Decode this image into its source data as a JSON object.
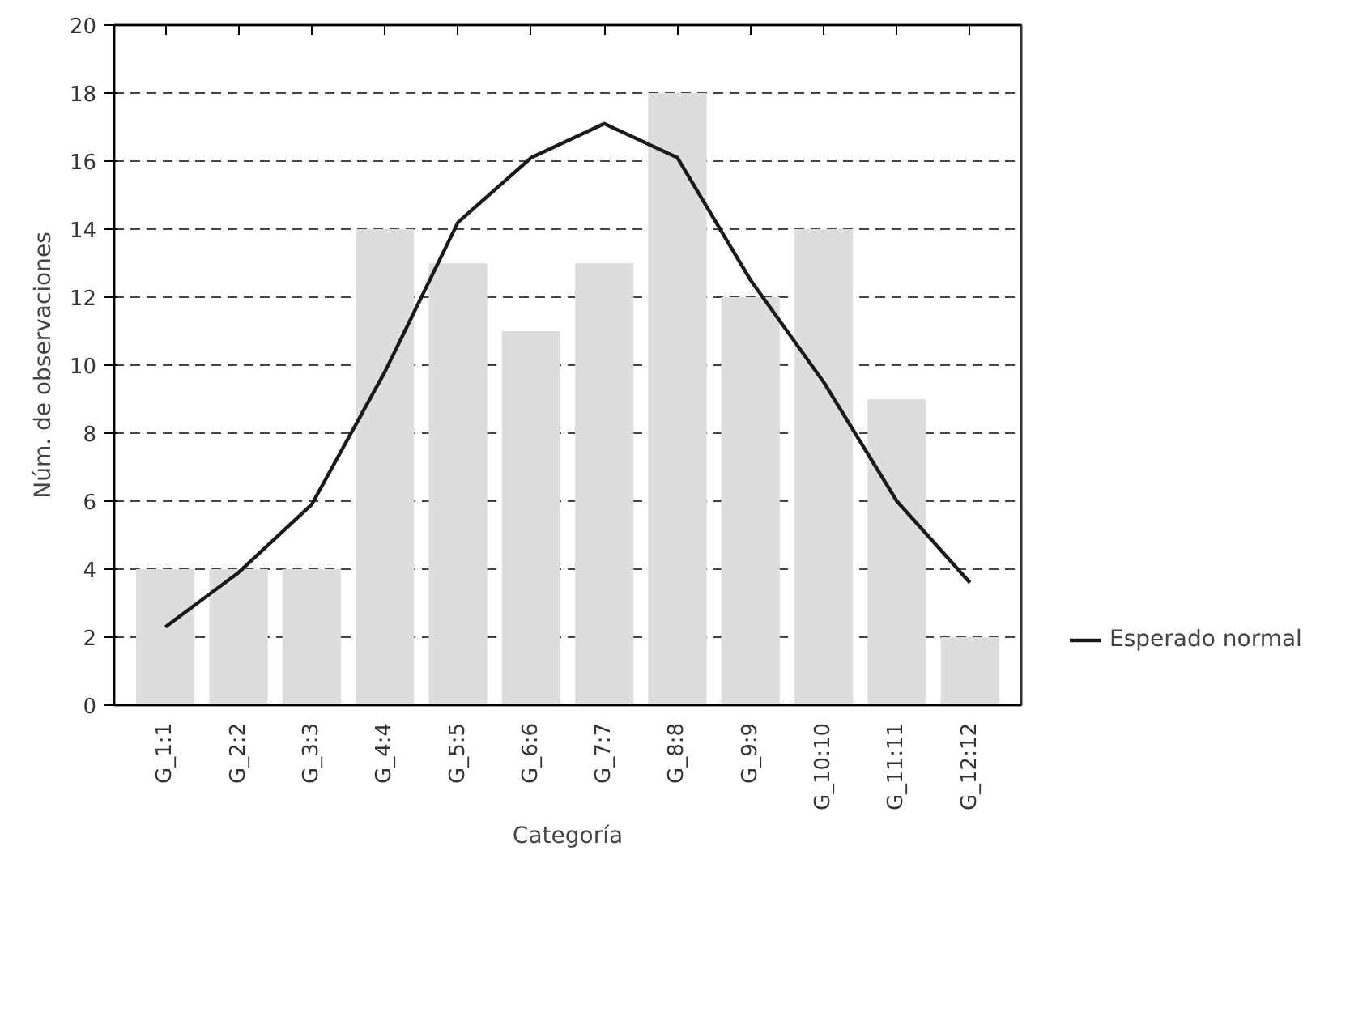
{
  "chart_data": {
    "type": "bar",
    "xlabel": "Categoría",
    "ylabel": "Núm. de observaciones",
    "categories": [
      "G_1:1",
      "G_2:2",
      "G_3:3",
      "G_4:4",
      "G_5:5",
      "G_6:6",
      "G_7:7",
      "G_8:8",
      "G_9:9",
      "G_10:10",
      "G_11:11",
      "G_12:12"
    ],
    "series": [
      {
        "color": "#dcdddf",
        "values": [
          4,
          4,
          4,
          14,
          13,
          11,
          13,
          18,
          12,
          14,
          9,
          2
        ]
      },
      {
        "type": "line",
        "name": "Esperado normal",
        "color": "#1a1a1a",
        "values": [
          2.3,
          3.9,
          5.9,
          9.8,
          14.2,
          16.1,
          17.1,
          16.1,
          12.5,
          9.5,
          6.0,
          3.6
        ]
      }
    ],
    "ylim": [
      0,
      20
    ],
    "yticks": [
      0,
      2,
      4,
      6,
      8,
      10,
      12,
      14,
      16,
      18,
      20
    ],
    "grid": "y",
    "legend": "right"
  }
}
